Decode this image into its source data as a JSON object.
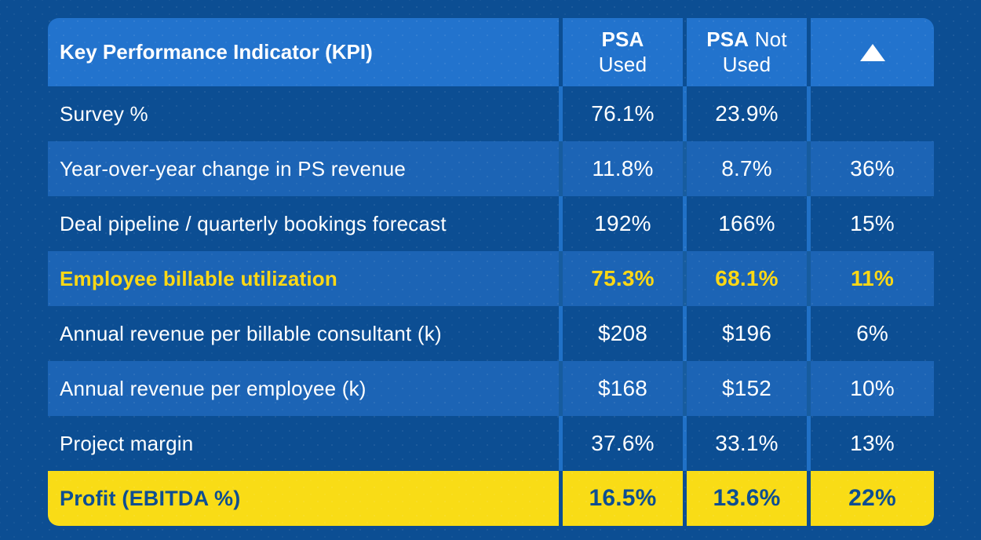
{
  "theme": {
    "page_bg": "#0c4e93",
    "header_bg": "#2273cd",
    "row_light": "#1c64b5",
    "yellow": "#f9dc16",
    "yellow_text": "#ffd814",
    "dark_text": "#0d4e92",
    "divider_dark_row": "#2071c7",
    "divider_light_row": "#175c9f",
    "white": "#ffffff"
  },
  "table": {
    "header": {
      "kpi_label": "Key Performance Indicator (KPI)",
      "col2_bold": "PSA",
      "col2_line2": "Used",
      "col3_bold": "PSA",
      "col3_rest": " Not",
      "col3_line2": "Used",
      "delta_icon": "triangle-up-icon"
    },
    "rows": [
      {
        "kpi": "Survey %",
        "psa_used": "76.1%",
        "psa_not_used": "23.9%",
        "delta": "",
        "variant": "dark"
      },
      {
        "kpi": "Year-over-year change in PS revenue",
        "psa_used": "11.8%",
        "psa_not_used": "8.7%",
        "delta": "36%",
        "variant": "light"
      },
      {
        "kpi": "Deal pipeline / quarterly bookings forecast",
        "psa_used": "192%",
        "psa_not_used": "166%",
        "delta": "15%",
        "variant": "dark"
      },
      {
        "kpi": "Employee billable utilization",
        "psa_used": "75.3%",
        "psa_not_used": "68.1%",
        "delta": "11%",
        "variant": "light highlight"
      },
      {
        "kpi": "Annual revenue per billable consultant (k)",
        "psa_used": "$208",
        "psa_not_used": "$196",
        "delta": "6%",
        "variant": "dark"
      },
      {
        "kpi": "Annual revenue per employee (k)",
        "psa_used": "$168",
        "psa_not_used": "$152",
        "delta": "10%",
        "variant": "light"
      },
      {
        "kpi": "Project margin",
        "psa_used": "37.6%",
        "psa_not_used": "33.1%",
        "delta": "13%",
        "variant": "dark"
      },
      {
        "kpi": "Profit (EBITDA %)",
        "psa_used": "16.5%",
        "psa_not_used": "13.6%",
        "delta": "22%",
        "variant": "yellow"
      }
    ]
  },
  "chart_data": {
    "type": "table",
    "title": "Key Performance Indicator (KPI) comparison: PSA Used vs PSA Not Used",
    "columns": [
      "Key Performance Indicator (KPI)",
      "PSA Used",
      "PSA Not Used",
      "Δ (improvement)"
    ],
    "rows": [
      [
        "Survey %",
        "76.1%",
        "23.9%",
        ""
      ],
      [
        "Year-over-year change in PS revenue",
        "11.8%",
        "8.7%",
        "36%"
      ],
      [
        "Deal pipeline / quarterly bookings forecast",
        "192%",
        "166%",
        "15%"
      ],
      [
        "Employee billable utilization",
        "75.3%",
        "68.1%",
        "11%"
      ],
      [
        "Annual revenue per billable consultant (k)",
        "$208",
        "$196",
        "6%"
      ],
      [
        "Annual revenue per employee (k)",
        "$168",
        "$152",
        "10%"
      ],
      [
        "Project margin",
        "37.6%",
        "33.1%",
        "13%"
      ],
      [
        "Profit (EBITDA %)",
        "16.5%",
        "13.6%",
        "22%"
      ]
    ],
    "layout_hints": {
      "highlight_rows": [
        "Employee billable utilization",
        "Profit (EBITDA %)"
      ],
      "header_position": "top",
      "grid": "column dividers only"
    }
  }
}
